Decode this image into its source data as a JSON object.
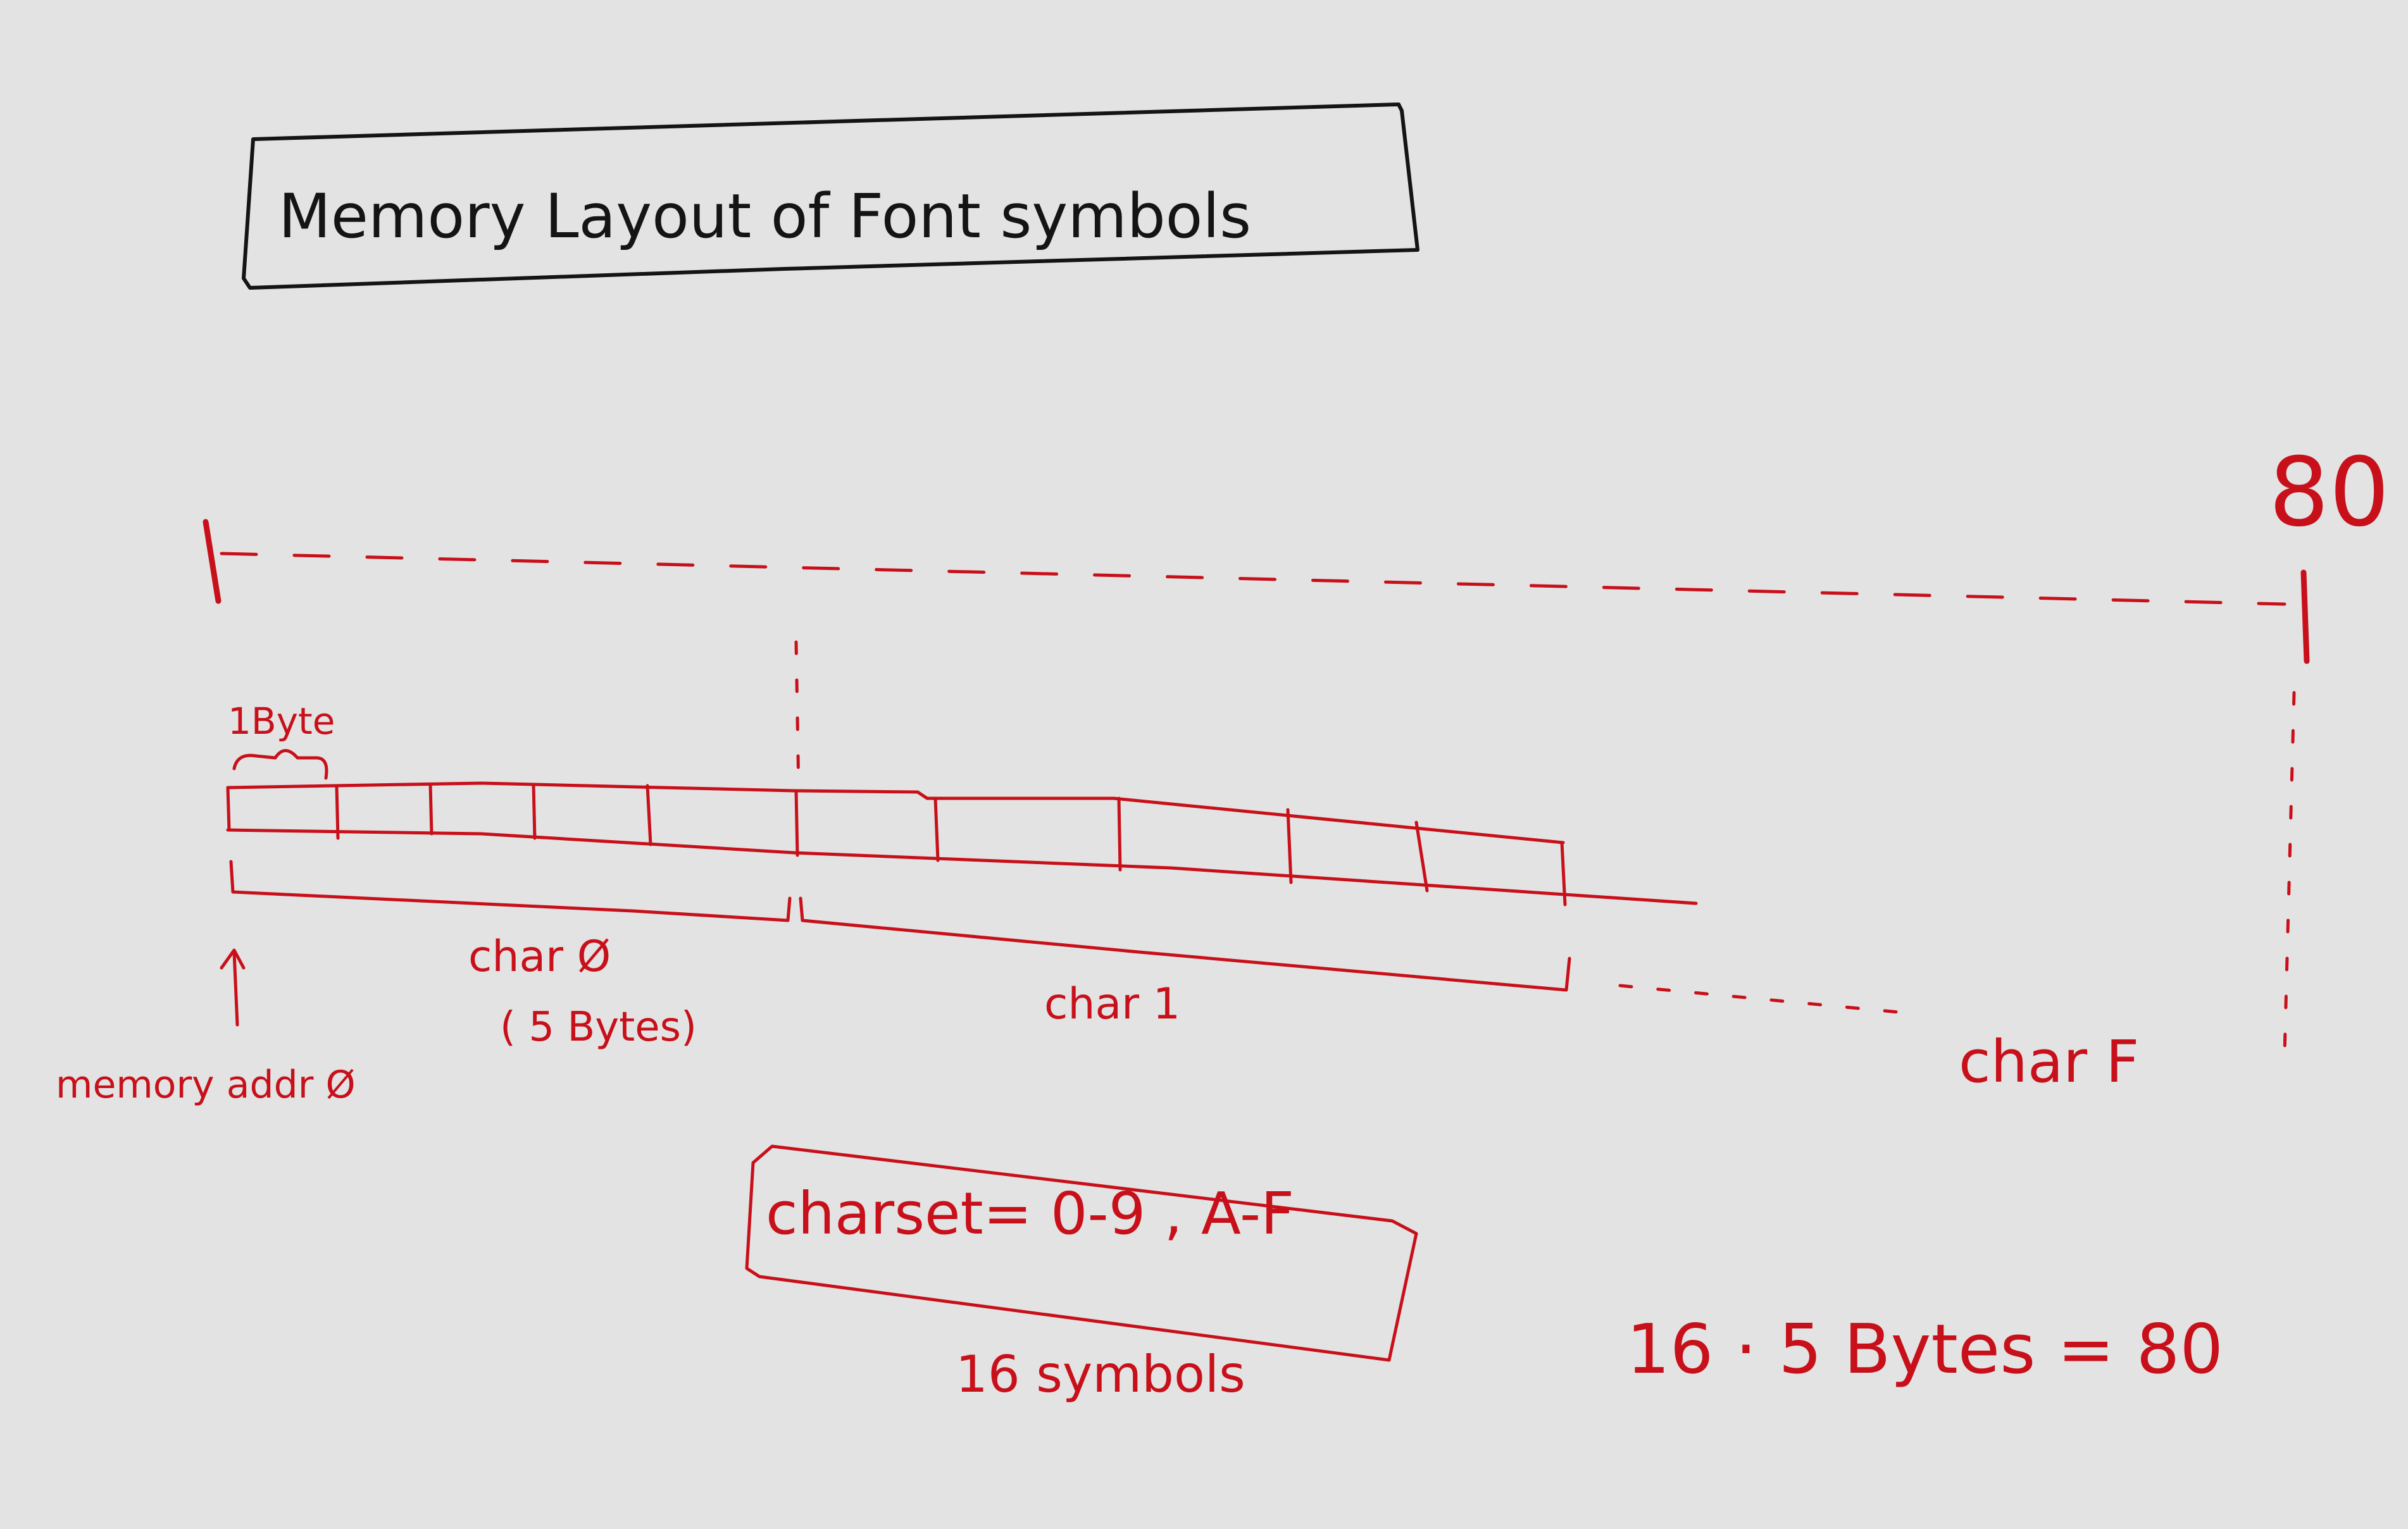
{
  "title": "Memory Layout of Font symbols",
  "labels": {
    "top_right_value": "80",
    "one_byte": "1Byte",
    "char0": "char Ø",
    "char0_size": "( 5 Bytes)",
    "char1": "char 1",
    "charF": "char F",
    "memory_addr": "memory addr Ø",
    "charset": "charset= 0-9 , A-F",
    "symbols_count": "16 symbols",
    "equation": "16 · 5 Bytes = 80"
  },
  "colors": {
    "background": "#e3e3e3",
    "black_ink": "#141414",
    "red_ink": "#c8101a"
  }
}
